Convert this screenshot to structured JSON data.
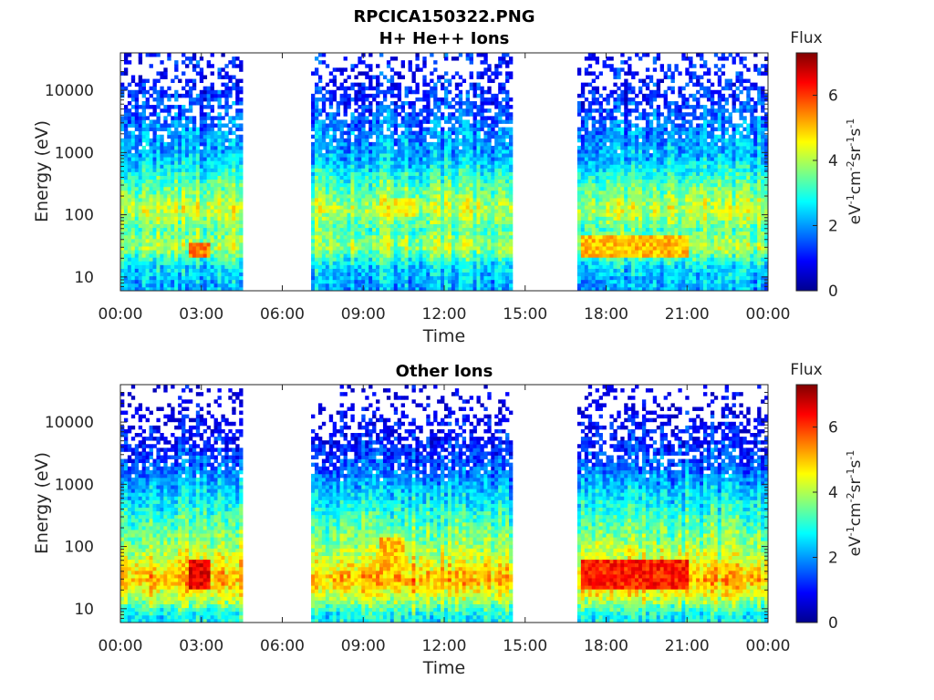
{
  "figure": {
    "title_line1": "RPCICA150322.PNG",
    "colormap": [
      "#00008f",
      "#0000ff",
      "#0080ff",
      "#00ffff",
      "#80ff80",
      "#ffff00",
      "#ff8000",
      "#ff0000",
      "#800000"
    ]
  },
  "chart_data": [
    {
      "type": "heatmap",
      "title": "H+ He++ Ions",
      "xlabel": "Time",
      "ylabel": "Energy (eV)",
      "x_ticks": [
        "00:00",
        "03:00",
        "06:00",
        "09:00",
        "12:00",
        "15:00",
        "18:00",
        "21:00",
        "00:00"
      ],
      "xlim_hours": [
        0,
        24
      ],
      "y_scale": "log",
      "y_ticks": [
        "10",
        "100",
        "1000",
        "10000"
      ],
      "ylim": [
        6,
        40000
      ],
      "colorbar": {
        "label": "Flux",
        "units": "eV-1cm-2sr-1s-1",
        "range": [
          0,
          7.3
        ],
        "ticks": [
          "0",
          "2",
          "4",
          "6"
        ]
      },
      "data_intervals_hours": [
        [
          0,
          4.5
        ],
        [
          7.0,
          14.5
        ],
        [
          16.9,
          24
        ]
      ],
      "peak_regions": [
        {
          "hours": [
            2.5,
            3.3
          ],
          "energy_eV": [
            20,
            35
          ],
          "flux": 5.5
        },
        {
          "hours": [
            9.5,
            10.8
          ],
          "energy_eV": [
            90,
            200
          ],
          "flux": 4.5
        },
        {
          "hours": [
            17.0,
            21.0
          ],
          "energy_eV": [
            20,
            50
          ],
          "flux": 5.0
        }
      ],
      "energy_profile_eV_flux": [
        [
          8,
          2.2
        ],
        [
          15,
          2.6
        ],
        [
          30,
          4.0
        ],
        [
          60,
          3.4
        ],
        [
          120,
          4.2
        ],
        [
          300,
          3.4
        ],
        [
          800,
          2.3
        ],
        [
          2000,
          2.0
        ],
        [
          6000,
          1.4
        ],
        [
          20000,
          1.0
        ]
      ]
    },
    {
      "type": "heatmap",
      "title": "Other Ions",
      "xlabel": "Time",
      "ylabel": "Energy (eV)",
      "x_ticks": [
        "00:00",
        "03:00",
        "06:00",
        "09:00",
        "12:00",
        "15:00",
        "18:00",
        "21:00",
        "00:00"
      ],
      "xlim_hours": [
        0,
        24
      ],
      "y_scale": "log",
      "y_ticks": [
        "10",
        "100",
        "1000",
        "10000"
      ],
      "ylim": [
        6,
        40000
      ],
      "colorbar": {
        "label": "Flux",
        "units": "eV-1cm-2sr-1s-1",
        "range": [
          0,
          7.3
        ],
        "ticks": [
          "0",
          "2",
          "4",
          "6"
        ]
      },
      "data_intervals_hours": [
        [
          0,
          4.5
        ],
        [
          7.0,
          14.5
        ],
        [
          16.9,
          24
        ]
      ],
      "peak_regions": [
        {
          "hours": [
            2.5,
            3.3
          ],
          "energy_eV": [
            20,
            60
          ],
          "flux": 6.5
        },
        {
          "hours": [
            9.5,
            10.5
          ],
          "energy_eV": [
            40,
            150
          ],
          "flux": 5.0
        },
        {
          "hours": [
            17.0,
            21.0
          ],
          "energy_eV": [
            20,
            60
          ],
          "flux": 6.2
        }
      ],
      "energy_profile_eV_flux": [
        [
          8,
          2.8
        ],
        [
          15,
          4.2
        ],
        [
          30,
          5.2
        ],
        [
          60,
          4.4
        ],
        [
          120,
          3.8
        ],
        [
          300,
          3.2
        ],
        [
          800,
          2.4
        ],
        [
          2000,
          1.6
        ],
        [
          4000,
          1.2
        ],
        [
          20000,
          0.4
        ]
      ]
    }
  ]
}
